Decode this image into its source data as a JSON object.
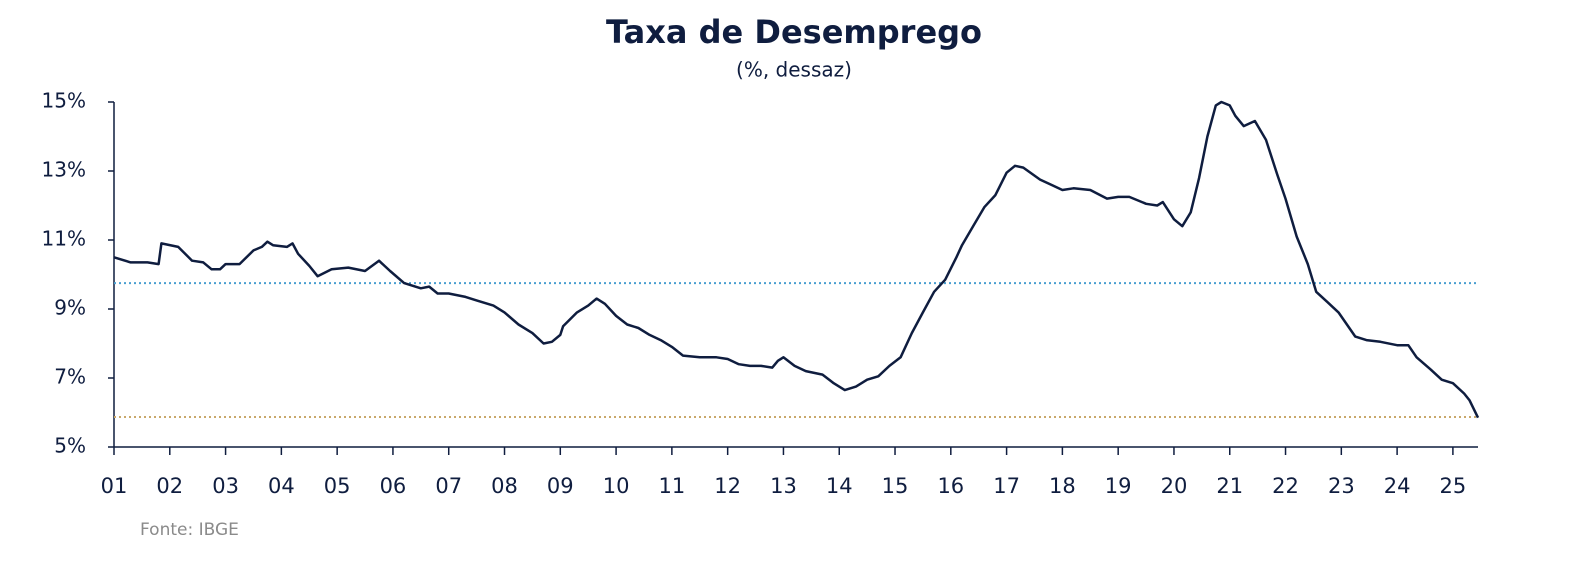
{
  "chart_data": {
    "type": "line",
    "title": "Taxa de Desemprego",
    "subtitle": "(%, dessaz)",
    "source": "Fonte: IBGE",
    "xlim": [
      1,
      25.45
    ],
    "ylim": [
      5,
      15
    ],
    "yticks": [
      {
        "value": 5,
        "label": "5%"
      },
      {
        "value": 7,
        "label": "7%"
      },
      {
        "value": 9,
        "label": "9%"
      },
      {
        "value": 11,
        "label": "11%"
      },
      {
        "value": 13,
        "label": "13%"
      },
      {
        "value": 15,
        "label": "15%"
      }
    ],
    "xticks": [
      {
        "value": 1,
        "label": "01"
      },
      {
        "value": 2,
        "label": "02"
      },
      {
        "value": 3,
        "label": "03"
      },
      {
        "value": 4,
        "label": "04"
      },
      {
        "value": 5,
        "label": "05"
      },
      {
        "value": 6,
        "label": "06"
      },
      {
        "value": 7,
        "label": "07"
      },
      {
        "value": 8,
        "label": "08"
      },
      {
        "value": 9,
        "label": "09"
      },
      {
        "value": 10,
        "label": "10"
      },
      {
        "value": 11,
        "label": "11"
      },
      {
        "value": 12,
        "label": "12"
      },
      {
        "value": 13,
        "label": "13"
      },
      {
        "value": 14,
        "label": "14"
      },
      {
        "value": 15,
        "label": "15"
      },
      {
        "value": 16,
        "label": "16"
      },
      {
        "value": 17,
        "label": "17"
      },
      {
        "value": 18,
        "label": "18"
      },
      {
        "value": 19,
        "label": "19"
      },
      {
        "value": 20,
        "label": "20"
      },
      {
        "value": 21,
        "label": "21"
      },
      {
        "value": 22,
        "label": "22"
      },
      {
        "value": 23,
        "label": "23"
      },
      {
        "value": 24,
        "label": "24"
      },
      {
        "value": 25,
        "label": "25"
      }
    ],
    "reference_lines": [
      {
        "value": 9.75,
        "color": "#4a9fd0"
      },
      {
        "value": 5.87,
        "color": "#c9a86a"
      }
    ],
    "x": [
      1.0,
      1.3,
      1.6,
      1.8,
      1.85,
      2.15,
      2.4,
      2.6,
      2.75,
      2.9,
      3.0,
      3.25,
      3.5,
      3.65,
      3.75,
      3.85,
      4.1,
      4.2,
      4.3,
      4.5,
      4.65,
      4.9,
      5.2,
      5.5,
      5.75,
      5.95,
      6.2,
      6.5,
      6.65,
      6.8,
      7.0,
      7.3,
      7.5,
      7.8,
      8.0,
      8.25,
      8.5,
      8.7,
      8.85,
      9.0,
      9.05,
      9.3,
      9.5,
      9.65,
      9.8,
      10.0,
      10.2,
      10.4,
      10.6,
      10.8,
      11.0,
      11.2,
      11.5,
      11.8,
      12.0,
      12.2,
      12.4,
      12.6,
      12.8,
      12.9,
      13.0,
      13.2,
      13.4,
      13.7,
      13.9,
      14.1,
      14.3,
      14.5,
      14.7,
      14.9,
      15.1,
      15.3,
      15.5,
      15.7,
      15.9,
      16.1,
      16.2,
      16.4,
      16.6,
      16.8,
      17.0,
      17.15,
      17.3,
      17.6,
      17.8,
      18.0,
      18.2,
      18.5,
      18.8,
      19.0,
      19.2,
      19.5,
      19.7,
      19.8,
      20.0,
      20.15,
      20.3,
      20.45,
      20.6,
      20.75,
      20.85,
      21.0,
      21.1,
      21.25,
      21.45,
      21.65,
      21.85,
      22.0,
      22.2,
      22.4,
      22.55,
      22.75,
      22.95,
      23.1,
      23.25,
      23.45,
      23.7,
      24.0,
      24.2,
      24.35,
      24.6,
      24.8,
      25.0,
      25.2,
      25.3,
      25.45
    ],
    "series": [
      {
        "color": "#0f1d3f",
        "values": [
          10.5,
          10.35,
          10.35,
          10.3,
          10.9,
          10.8,
          10.4,
          10.35,
          10.15,
          10.15,
          10.3,
          10.3,
          10.7,
          10.8,
          10.95,
          10.85,
          10.8,
          10.9,
          10.6,
          10.25,
          9.95,
          10.15,
          10.2,
          10.1,
          10.4,
          10.1,
          9.75,
          9.6,
          9.65,
          9.45,
          9.45,
          9.35,
          9.25,
          9.1,
          8.9,
          8.55,
          8.3,
          8.0,
          8.05,
          8.25,
          8.5,
          8.9,
          9.1,
          9.3,
          9.15,
          8.8,
          8.55,
          8.45,
          8.25,
          8.1,
          7.9,
          7.65,
          7.6,
          7.6,
          7.55,
          7.4,
          7.35,
          7.35,
          7.3,
          7.5,
          7.6,
          7.35,
          7.2,
          7.1,
          6.85,
          6.65,
          6.75,
          6.95,
          7.05,
          7.35,
          7.6,
          8.3,
          8.9,
          9.5,
          9.85,
          10.5,
          10.85,
          11.4,
          11.95,
          12.3,
          12.95,
          13.15,
          13.1,
          12.75,
          12.6,
          12.45,
          12.5,
          12.45,
          12.2,
          12.25,
          12.25,
          12.05,
          12.0,
          12.1,
          11.6,
          11.4,
          11.8,
          12.8,
          14.0,
          14.9,
          15.0,
          14.9,
          14.6,
          14.3,
          14.45,
          13.9,
          12.9,
          12.2,
          11.1,
          10.3,
          9.5,
          9.2,
          8.9,
          8.55,
          8.2,
          8.1,
          8.05,
          7.95,
          7.95,
          7.6,
          7.25,
          6.95,
          6.85,
          6.55,
          6.35,
          5.85
        ]
      }
    ]
  }
}
